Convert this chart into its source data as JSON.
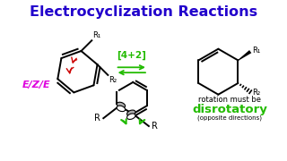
{
  "title": "Electrocyclization Reactions",
  "title_color": "#2200cc",
  "title_fontsize": 11.5,
  "title_fontweight": "bold",
  "background_color": "#ffffff",
  "label_42": "[4+2]",
  "label_42_color": "#22bb00",
  "ezE_label": "E/Z/E",
  "ezE_color": "#dd00dd",
  "disrotatory_label": "disrotatory",
  "disrotatory_color": "#22bb00",
  "rotation_text": "rotation must be",
  "opposite_text": "(opposite directions)",
  "r1_label": "R₁",
  "r2_label": "R₂",
  "r_label": "R",
  "arrow_color": "#22bb00",
  "red_arrow_color": "#cc0000",
  "lobe_color": "#aaaaaa"
}
